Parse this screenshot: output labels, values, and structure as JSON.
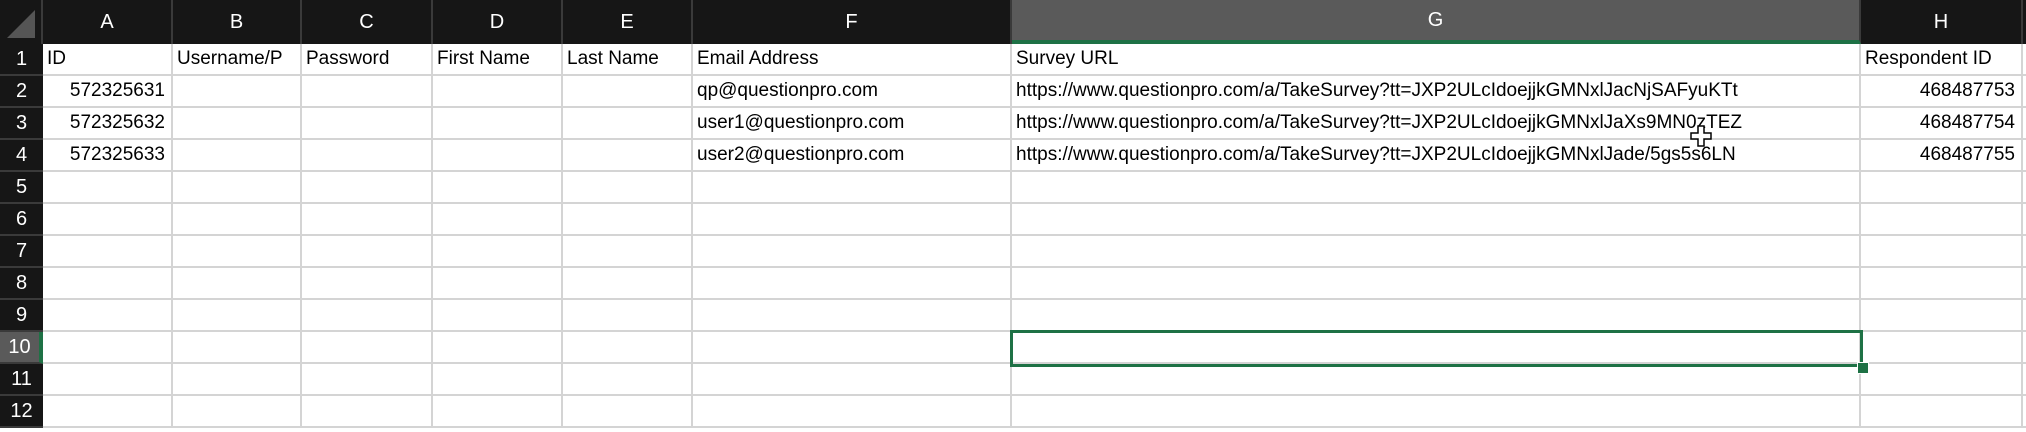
{
  "columns": [
    "A",
    "B",
    "C",
    "D",
    "E",
    "F",
    "G",
    "H"
  ],
  "rows": [
    "1",
    "2",
    "3",
    "4",
    "5",
    "6",
    "7",
    "8",
    "9",
    "10",
    "11",
    "12"
  ],
  "selected_cell": "G10",
  "accent_color": "#1e7145",
  "header_row": [
    "ID",
    "Username/P",
    "Password",
    "First Name",
    "Last Name",
    "Email Address",
    "Survey URL",
    "Respondent ID"
  ],
  "data_rows": [
    [
      "572325631",
      "",
      "",
      "",
      "",
      "qp@questionpro.com",
      "https://www.questionpro.com/a/TakeSurvey?tt=JXP2ULcIdoejjkGMNxlJacNjSAFyuKTt",
      "468487753"
    ],
    [
      "572325632",
      "",
      "",
      "",
      "",
      "user1@questionpro.com",
      "https://www.questionpro.com/a/TakeSurvey?tt=JXP2ULcIdoejjkGMNxlJaXs9MN0zTEZ",
      "468487754"
    ],
    [
      "572325633",
      "",
      "",
      "",
      "",
      "user2@questionpro.com",
      "https://www.questionpro.com/a/TakeSurvey?tt=JXP2ULcIdoejjkGMNxlJade/5gs5s6LN",
      "468487755"
    ]
  ],
  "cursor": "crosshair-plus-icon"
}
